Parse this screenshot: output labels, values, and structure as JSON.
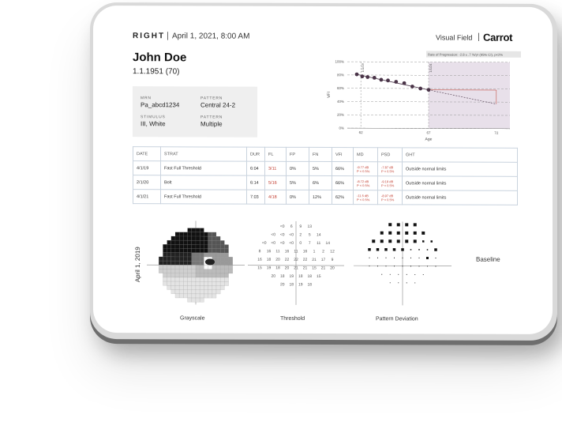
{
  "header": {
    "eye": "RIGHT",
    "datetime": "April 1, 2021, 8:00 AM",
    "module": "Visual Field",
    "brand": "Carrot"
  },
  "patient": {
    "name": "John Doe",
    "dob_age": "1.1.1951 (70)",
    "mrn_label": "MRN",
    "mrn": "Pa_abcd1234",
    "pattern_label": "PATTERN",
    "pattern": "Central 24-2",
    "stimulus_label": "STIMULUS",
    "stimulus": "III, White",
    "pattern2_label": "PATTERN",
    "pattern2": "Multiple"
  },
  "chart_data": {
    "type": "line",
    "title": "Rate of Progression: -2.8 ± .7 %/yr (95% CI), p<2%",
    "xlabel": "Age",
    "ylabel": "VFI",
    "xlim": [
      61,
      73
    ],
    "ylim": [
      0,
      100
    ],
    "x_ticks": [
      "62",
      "67",
      "72"
    ],
    "y_ticks": [
      "0%",
      "20%",
      "40%",
      "60%",
      "80%",
      "100%"
    ],
    "grid": true,
    "points": [
      {
        "x": 61.7,
        "y": 81
      },
      {
        "x": 62.1,
        "y": 78
      },
      {
        "x": 62.5,
        "y": 77
      },
      {
        "x": 63.0,
        "y": 76
      },
      {
        "x": 63.5,
        "y": 73
      },
      {
        "x": 64.0,
        "y": 72
      },
      {
        "x": 64.6,
        "y": 70
      },
      {
        "x": 65.2,
        "y": 68
      },
      {
        "x": 65.8,
        "y": 63
      },
      {
        "x": 66.4,
        "y": 60
      },
      {
        "x": 67.0,
        "y": 58
      }
    ],
    "projection": {
      "x": [
        67,
        72
      ],
      "y": [
        58,
        37
      ]
    },
    "markers": [
      {
        "x": 62,
        "label": "1/1/19"
      },
      {
        "x": 67,
        "label": "1/1/24"
      }
    ]
  },
  "table": {
    "headers": [
      "DATE",
      "STRAT",
      "DUR",
      "FL",
      "FP",
      "FN",
      "VFI",
      "MD",
      "PSD",
      "GHT"
    ],
    "rows": [
      {
        "date": "4/1/19",
        "strat": "Fast Full Threshold",
        "dur": "6:04",
        "fl": "3/11",
        "fp": "0%",
        "fn": "5%",
        "vfi": "66%",
        "md": "-9.77 dB",
        "md_p": "P < 0.5%",
        "psd": "-7.87 dB",
        "psd_p": "P < 0.5%",
        "ght": "Outside normal limits"
      },
      {
        "date": "2/1/20",
        "strat": "Bolt",
        "dur": "6:14",
        "fl": "5/16",
        "fp": "5%",
        "fn": "6%",
        "vfi": "66%",
        "md": "-8.72 dB",
        "md_p": "P < 0.5%",
        "psd": "-9.19 dB",
        "psd_p": "P < 0.5%",
        "ght": "Outside normal limits"
      },
      {
        "date": "4/1/21",
        "strat": "Fast Full Threshold",
        "dur": "7:03",
        "fl": "4/18",
        "fp": "0%",
        "fn": "12%",
        "vfi": "62%",
        "md": "-11.5 dB",
        "md_p": "P < 0.5%",
        "psd": "-8.97 dB",
        "psd_p": "P < 0.5%",
        "ght": "Outside normal limits"
      }
    ]
  },
  "plots": {
    "side_date": "April 1, 2019",
    "grayscale_label": "Grayscale",
    "threshold_label": "Threshold",
    "deviation_label": "Pattern Deviation",
    "baseline_label": "Baseline",
    "threshold_rows": [
      [
        "<0",
        "6",
        "9",
        "13"
      ],
      [
        "<0",
        "<0",
        "<0",
        "2",
        "5",
        "14"
      ],
      [
        "<0",
        "<0",
        "<0",
        "<0",
        "0",
        "7",
        "11",
        "14"
      ],
      [
        "8",
        "16",
        "11",
        "16",
        "11",
        "16",
        "1",
        "2",
        "12"
      ],
      [
        "16",
        "18",
        "20",
        "22",
        "22",
        "22",
        "21",
        "17",
        "9"
      ],
      [
        "15",
        "19",
        "18",
        "20",
        "21",
        "21",
        "15",
        "21",
        "20"
      ],
      [
        "20",
        "18",
        "19",
        "18",
        "18",
        "15"
      ],
      [
        "20",
        "18",
        "19",
        "18"
      ]
    ]
  }
}
